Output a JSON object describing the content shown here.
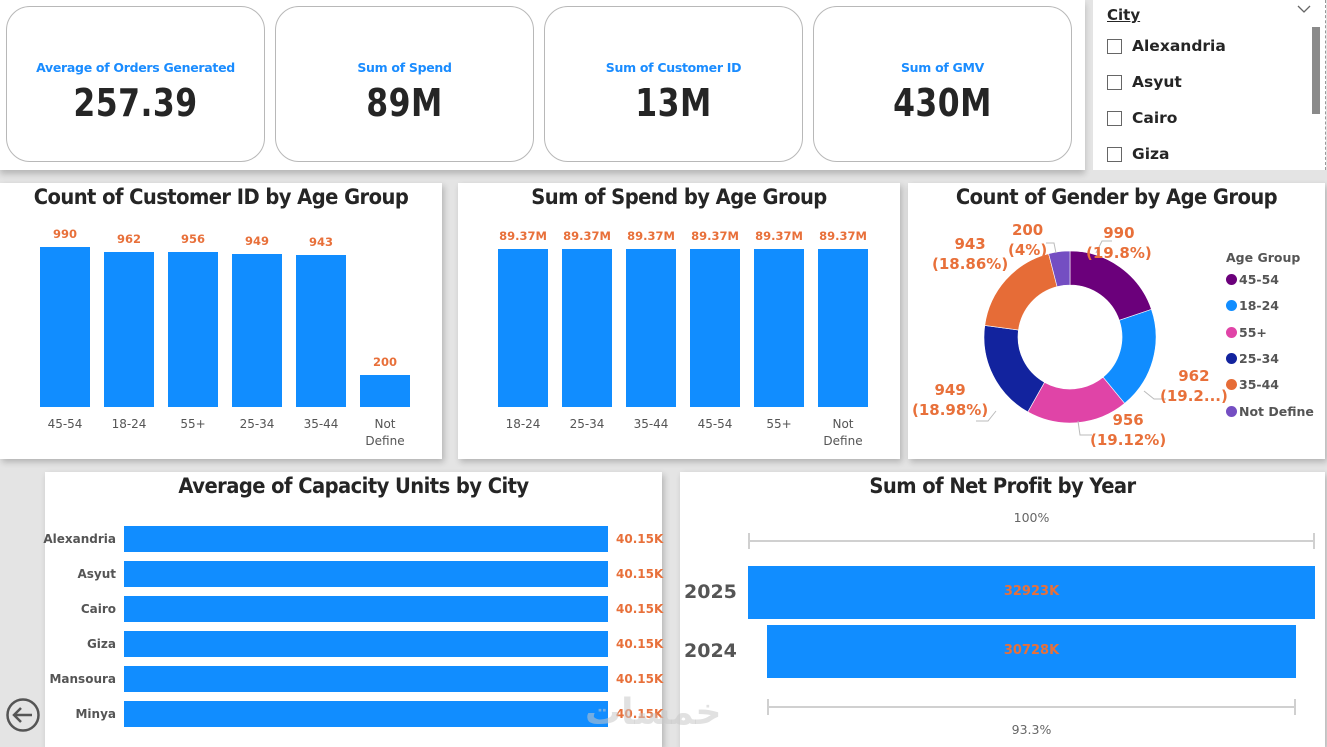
{
  "kpis": [
    {
      "label": "Average of Orders Generated",
      "value": "257.39"
    },
    {
      "label": "Sum of Spend",
      "value": "89M"
    },
    {
      "label": "Sum of Customer ID",
      "value": "13M"
    },
    {
      "label": "Sum of GMV",
      "value": "430M"
    }
  ],
  "slicer": {
    "title": "City",
    "chevron_icon": "chevron-down-icon",
    "items": [
      "Alexandria",
      "Asyut",
      "Cairo",
      "Giza"
    ]
  },
  "watermark": "خمسات",
  "nav": {
    "back_icon": "back-arrow-icon"
  },
  "colors": {
    "bar": "#118dff",
    "data_label": "#e8703a",
    "kpi_label": "#1a8cff"
  },
  "chart_data": [
    {
      "type": "bar",
      "title": "Count of Customer ID by Age Group",
      "categories": [
        "45-54",
        "18-24",
        "55+",
        "25-34",
        "35-44",
        "Not Define"
      ],
      "values": [
        990,
        962,
        956,
        949,
        943,
        200
      ],
      "value_labels": [
        "990",
        "962",
        "956",
        "949",
        "943",
        "200"
      ],
      "xlabel": "",
      "ylabel": "",
      "ylim": [
        0,
        990
      ],
      "grid": false
    },
    {
      "type": "bar",
      "title": "Sum of Spend by Age Group",
      "categories": [
        "18-24",
        "25-34",
        "35-44",
        "45-54",
        "55+",
        "Not Define"
      ],
      "values": [
        89.37,
        89.37,
        89.37,
        89.37,
        89.37,
        89.37
      ],
      "value_labels": [
        "89.37M",
        "89.37M",
        "89.37M",
        "89.37M",
        "89.37M",
        "89.37M"
      ],
      "unit": "M",
      "xlabel": "",
      "ylabel": "",
      "ylim": [
        0,
        89.37
      ],
      "grid": false
    },
    {
      "type": "pie",
      "subtype": "donut",
      "title": "Count of Gender by Age Group",
      "legend_title": "Age Group",
      "legend_position": "right",
      "slices": [
        {
          "label": "45-54",
          "value": 990,
          "percent_label": "(19.8%)",
          "color": "#6b007b"
        },
        {
          "label": "18-24",
          "value": 962,
          "percent_label": "(19.2...)",
          "color": "#118dff"
        },
        {
          "label": "55+",
          "value": 956,
          "percent_label": "(19.12%)",
          "color": "#e044a7"
        },
        {
          "label": "25-34",
          "value": 949,
          "percent_label": "(18.98%)",
          "color": "#12239e"
        },
        {
          "label": "35-44",
          "value": 943,
          "percent_label": "(18.86%)",
          "color": "#e66c37"
        },
        {
          "label": "Not Define",
          "value": 200,
          "percent_label": "(4%)",
          "color": "#744ec2"
        }
      ]
    },
    {
      "type": "bar",
      "orientation": "horizontal",
      "title": "Average of Capacity Units by City",
      "categories": [
        "Alexandria",
        "Asyut",
        "Cairo",
        "Giza",
        "Mansoura",
        "Minya"
      ],
      "values": [
        40.15,
        40.15,
        40.15,
        40.15,
        40.15,
        40.15
      ],
      "value_labels": [
        "40.15K",
        "40.15K",
        "40.15K",
        "40.15K",
        "40.15K",
        "40.15K"
      ],
      "unit": "K",
      "xlim": [
        0,
        40.15
      ]
    },
    {
      "type": "bar",
      "subtype": "funnel",
      "title": "Sum of Net Profit by Year",
      "categories": [
        "2025",
        "2024"
      ],
      "values": [
        32923,
        30728
      ],
      "value_labels": [
        "32923K",
        "30728K"
      ],
      "unit": "K",
      "top_percent_label": "100%",
      "bottom_percent_label": "93.3%"
    }
  ]
}
